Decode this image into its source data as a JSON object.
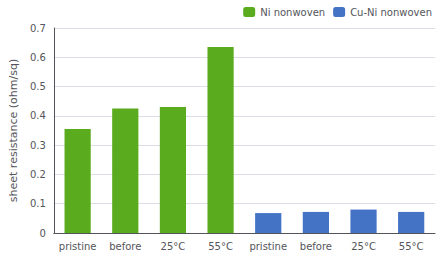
{
  "chart_data": {
    "type": "bar",
    "categories": [
      "pristine",
      "before",
      "25°C",
      "55°C",
      "pristine",
      "before",
      "25°C",
      "55°C"
    ],
    "series": [
      {
        "name": "Ni nonwoven",
        "color": "#5aab1e",
        "values": [
          0.355,
          0.425,
          0.43,
          0.635,
          null,
          null,
          null,
          null
        ]
      },
      {
        "name": "Cu-Ni nonwoven",
        "color": "#4472C4",
        "values": [
          null,
          null,
          null,
          null,
          0.068,
          0.072,
          0.08,
          0.072
        ]
      }
    ],
    "ylabel": "sheet resistance (ohm/sq)",
    "ylim": [
      0,
      0.7
    ],
    "yticks": [
      0,
      0.1,
      0.2,
      0.3,
      0.4,
      0.5,
      0.6,
      0.7
    ],
    "grid": true,
    "legend": "upper right"
  }
}
